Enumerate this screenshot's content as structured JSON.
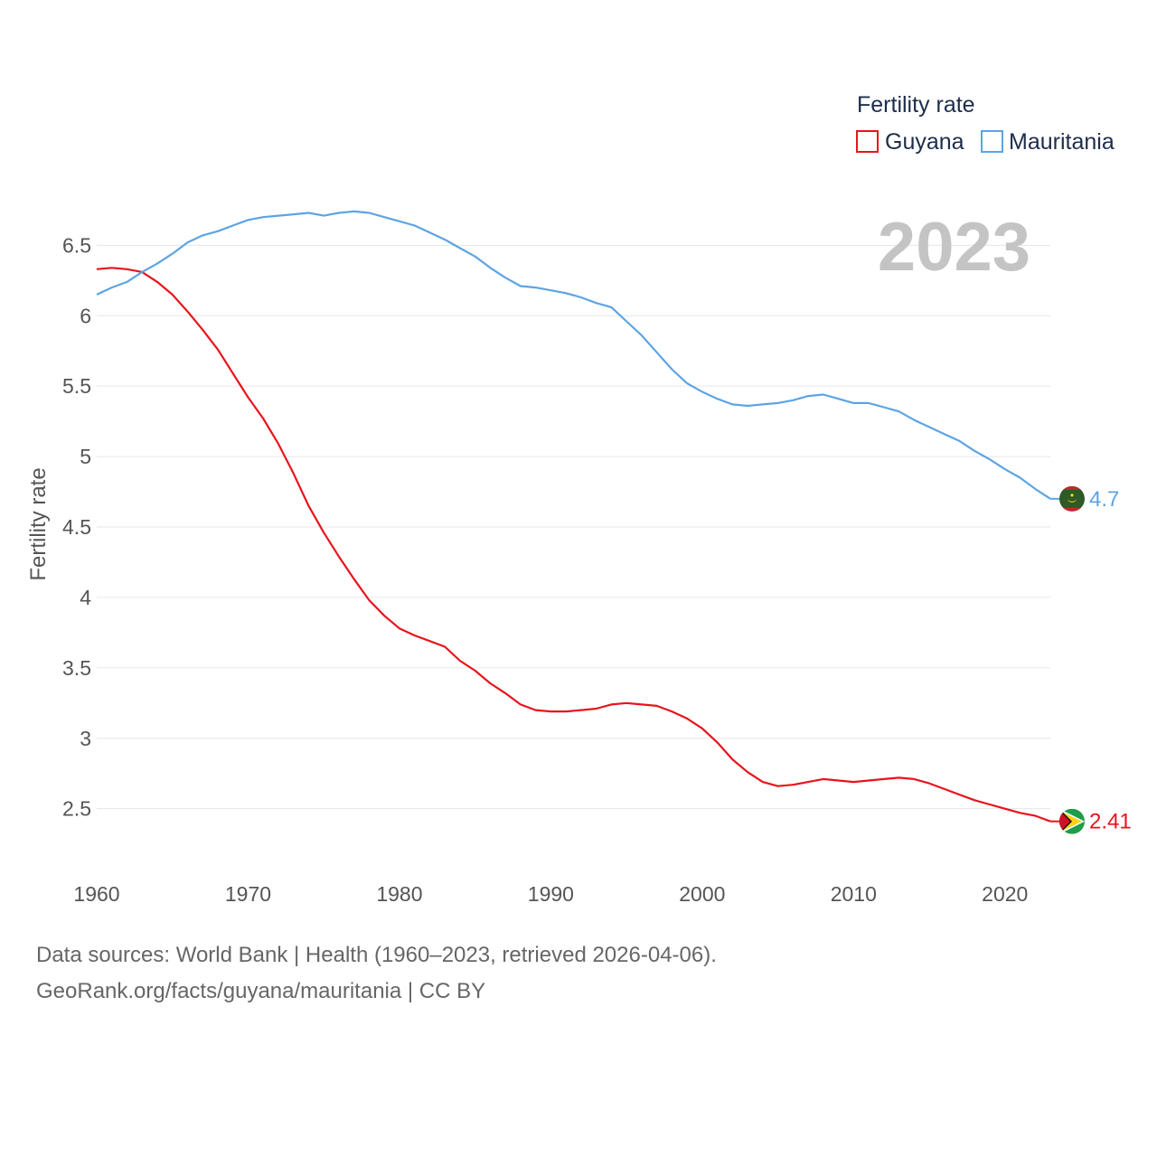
{
  "chart_data": {
    "type": "line",
    "legend_title": "Fertility rate",
    "ylabel": "Fertility rate",
    "xlabel": "",
    "highlight_year": "2023",
    "x_range": [
      1960,
      2023
    ],
    "ylim": [
      2.1,
      6.9
    ],
    "y_ticks": [
      2.5,
      3,
      3.5,
      4,
      4.5,
      5,
      5.5,
      6,
      6.5
    ],
    "y_tick_labels": [
      "2.5",
      "3",
      "3.5",
      "4",
      "4.5",
      "5",
      "5.5",
      "6",
      "6.5"
    ],
    "x_ticks": [
      1960,
      1970,
      1980,
      1990,
      2000,
      2010,
      2020
    ],
    "x_tick_labels": [
      "1960",
      "1970",
      "1980",
      "1990",
      "2000",
      "2010",
      "2020"
    ],
    "legend_position": "top-right",
    "grid": true,
    "series": [
      {
        "name": "Guyana",
        "color": "#e8141c",
        "end_label": "2.41",
        "flag": "guyana-flag",
        "x": [
          1960,
          1961,
          1962,
          1963,
          1964,
          1965,
          1966,
          1967,
          1968,
          1969,
          1970,
          1971,
          1972,
          1973,
          1974,
          1975,
          1976,
          1977,
          1978,
          1979,
          1980,
          1981,
          1982,
          1983,
          1984,
          1985,
          1986,
          1987,
          1988,
          1989,
          1990,
          1991,
          1992,
          1993,
          1994,
          1995,
          1996,
          1997,
          1998,
          1999,
          2000,
          2001,
          2002,
          2003,
          2004,
          2005,
          2006,
          2007,
          2008,
          2009,
          2010,
          2011,
          2012,
          2013,
          2014,
          2015,
          2016,
          2017,
          2018,
          2019,
          2020,
          2021,
          2022,
          2023
        ],
        "values": [
          6.33,
          6.34,
          6.33,
          6.31,
          6.24,
          6.15,
          6.03,
          5.9,
          5.76,
          5.59,
          5.42,
          5.27,
          5.09,
          4.88,
          4.65,
          4.46,
          4.29,
          4.13,
          3.98,
          3.87,
          3.78,
          3.73,
          3.69,
          3.65,
          3.55,
          3.48,
          3.39,
          3.32,
          3.24,
          3.2,
          3.19,
          3.19,
          3.2,
          3.21,
          3.24,
          3.25,
          3.24,
          3.23,
          3.19,
          3.14,
          3.07,
          2.97,
          2.85,
          2.76,
          2.69,
          2.66,
          2.67,
          2.69,
          2.71,
          2.7,
          2.69,
          2.7,
          2.71,
          2.72,
          2.71,
          2.68,
          2.64,
          2.6,
          2.56,
          2.53,
          2.5,
          2.47,
          2.45,
          2.41
        ]
      },
      {
        "name": "Mauritania",
        "color": "#5da4e3",
        "end_label": "4.7",
        "flag": "mauritania-flag",
        "x": [
          1960,
          1961,
          1962,
          1963,
          1964,
          1965,
          1966,
          1967,
          1968,
          1969,
          1970,
          1971,
          1972,
          1973,
          1974,
          1975,
          1976,
          1977,
          1978,
          1979,
          1980,
          1981,
          1982,
          1983,
          1984,
          1985,
          1986,
          1987,
          1988,
          1989,
          1990,
          1991,
          1992,
          1993,
          1994,
          1995,
          1996,
          1997,
          1998,
          1999,
          2000,
          2001,
          2002,
          2003,
          2004,
          2005,
          2006,
          2007,
          2008,
          2009,
          2010,
          2011,
          2012,
          2013,
          2014,
          2015,
          2016,
          2017,
          2018,
          2019,
          2020,
          2021,
          2022,
          2023
        ],
        "values": [
          6.15,
          6.2,
          6.24,
          6.31,
          6.37,
          6.44,
          6.52,
          6.57,
          6.6,
          6.64,
          6.68,
          6.7,
          6.71,
          6.72,
          6.73,
          6.71,
          6.73,
          6.74,
          6.73,
          6.7,
          6.67,
          6.64,
          6.59,
          6.54,
          6.48,
          6.42,
          6.34,
          6.27,
          6.21,
          6.2,
          6.18,
          6.16,
          6.13,
          6.09,
          6.06,
          5.96,
          5.86,
          5.74,
          5.62,
          5.52,
          5.46,
          5.41,
          5.37,
          5.36,
          5.37,
          5.38,
          5.4,
          5.43,
          5.44,
          5.41,
          5.38,
          5.38,
          5.35,
          5.32,
          5.26,
          5.21,
          5.16,
          5.11,
          5.04,
          4.98,
          4.91,
          4.85,
          4.77,
          4.7
        ]
      }
    ]
  },
  "footer": {
    "sources": "Data sources: World Bank | Health (1960–2023, retrieved 2026-04-06).",
    "link": "GeoRank.org/facts/guyana/mauritania | CC BY"
  }
}
